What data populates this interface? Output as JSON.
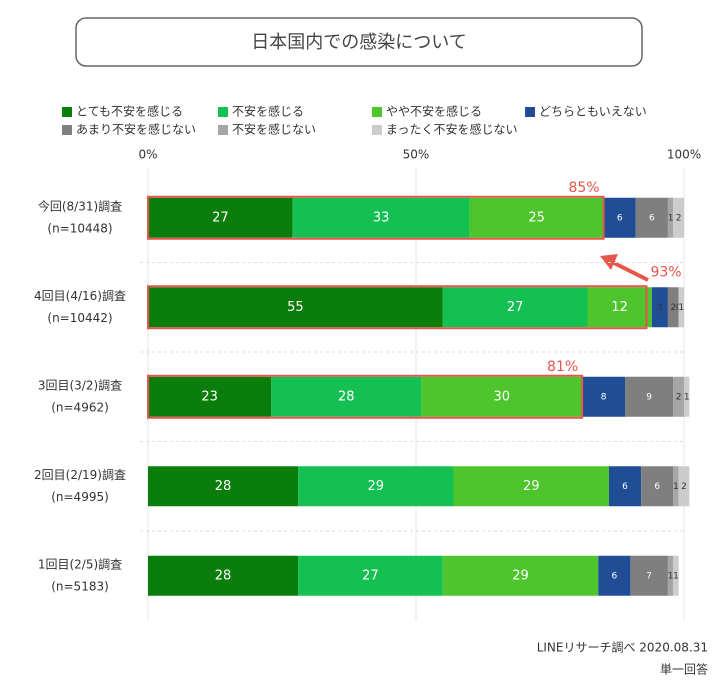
{
  "chart_data": {
    "type": "stacked-barh",
    "title": "日本国内での感染について",
    "categories": [
      "今回(8/31)調査",
      "4回目(4/16)調査",
      "3回目(3/2)調査",
      "2回目(2/19)調査",
      "1回目(2/5)調査"
    ],
    "sample_sizes": [
      "(n=10448)",
      "(n=10442)",
      "(n=4962)",
      "(n=4995)",
      "(n=5183)"
    ],
    "series": [
      {
        "name": "とても不安を感じる",
        "color": "#0b7d0b",
        "values": [
          27,
          55,
          23,
          28,
          28
        ]
      },
      {
        "name": "不安を感じる",
        "color": "#14c052",
        "values": [
          33,
          27,
          28,
          29,
          27
        ]
      },
      {
        "name": "やや不安を感じる",
        "color": "#4ec52c",
        "values": [
          25,
          12,
          30,
          29,
          29
        ]
      },
      {
        "name": "どちらともいえない",
        "color": "#1f4e96",
        "values": [
          6,
          3,
          8,
          6,
          6
        ]
      },
      {
        "name": "あまり不安を感じない",
        "color": "#7f7f7f",
        "values": [
          6,
          2,
          9,
          6,
          7
        ]
      },
      {
        "name": "不安を感じない",
        "color": "#a6a6a6",
        "values": [
          1,
          0,
          2,
          1,
          1
        ]
      },
      {
        "name": "まったく不安を感じない",
        "color": "#cccccc",
        "values": [
          2,
          1,
          1,
          2,
          1
        ]
      }
    ],
    "xlim": [
      0,
      100
    ],
    "xticks": [
      {
        "value": 0,
        "label": "0%"
      },
      {
        "value": 50,
        "label": "50%"
      },
      {
        "value": 100,
        "label": "100%"
      }
    ],
    "grid": true,
    "annotations": [
      {
        "category": 0,
        "value": 85,
        "label": "85%"
      },
      {
        "category": 1,
        "value": 93,
        "label": "93%"
      },
      {
        "category": 2,
        "value": 81,
        "label": "81%"
      }
    ],
    "source": "LINEリサーチ調べ 2020.08.31",
    "note": "単一回答"
  }
}
